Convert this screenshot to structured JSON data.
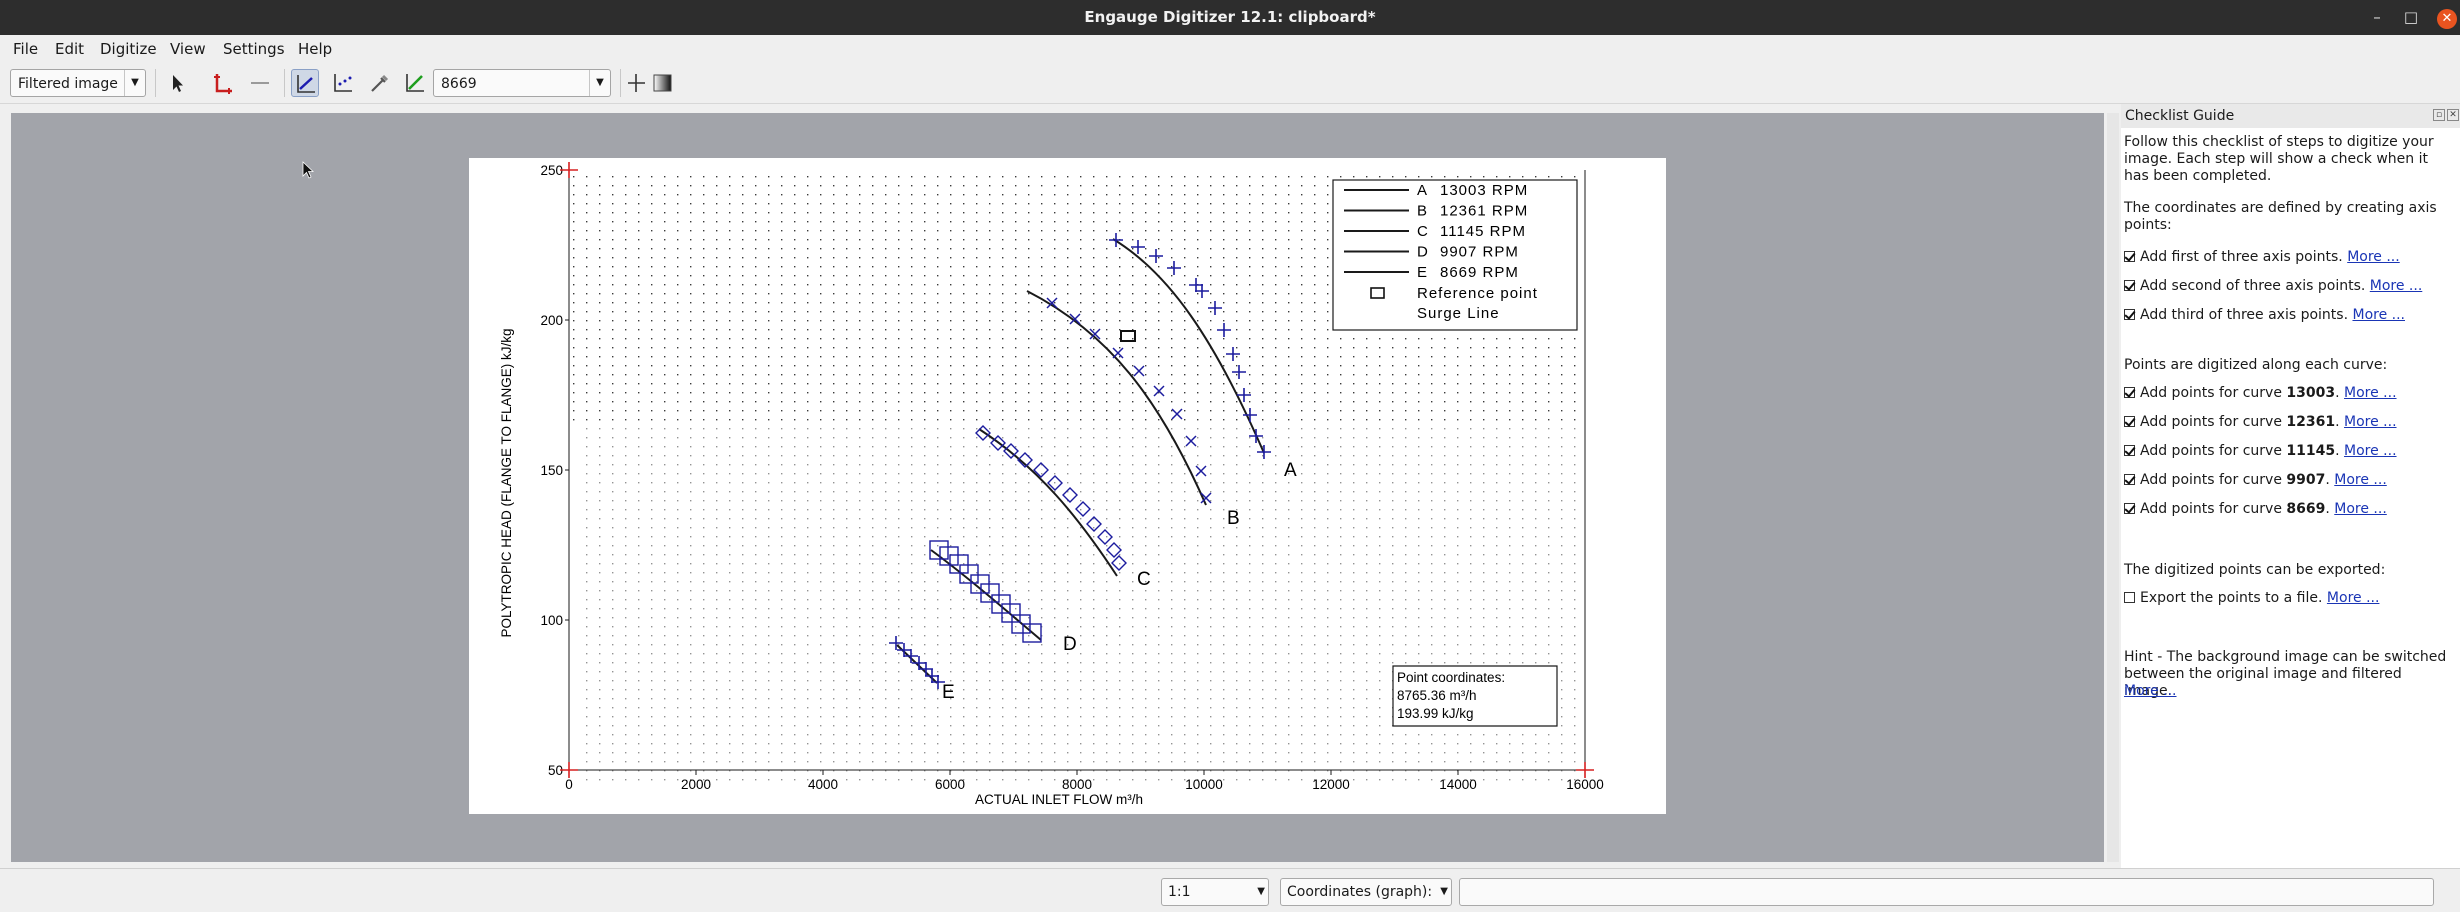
{
  "window": {
    "title": "Engauge Digitizer 12.1: clipboard*",
    "minimize_glyph": "–",
    "maximize_glyph": "□",
    "close_glyph": "✕"
  },
  "menu": [
    "File",
    "Edit",
    "Digitize",
    "View",
    "Settings",
    "Help"
  ],
  "toolbar": {
    "background_mode": "Filtered image",
    "curve_selected": "8669",
    "icons": [
      "select-arrow-icon",
      "axis-point-icon",
      "scale-bar-icon",
      "curve-point-icon",
      "point-match-icon",
      "color-picker-icon",
      "segment-fill-icon",
      "view-guidelines-icon",
      "background-contrast-icon"
    ]
  },
  "plot": {
    "y_ticks": [
      "250",
      "200",
      "150",
      "100",
      "50"
    ],
    "x_ticks": [
      "0",
      "2000",
      "4000",
      "6000",
      "8000",
      "10000",
      "12000",
      "14000",
      "16000"
    ],
    "y_label": "POLYTROPIC HEAD (FLANGE TO FLANGE)   kJ/kg",
    "x_label": "ACTUAL INLET FLOW     m³/h",
    "legend": [
      {
        "letter": "A",
        "text": "13003 RPM"
      },
      {
        "letter": "B",
        "text": "12361 RPM"
      },
      {
        "letter": "C",
        "text": "11145 RPM"
      },
      {
        "letter": "D",
        "text": "9907 RPM"
      },
      {
        "letter": "E",
        "text": "8669 RPM"
      }
    ],
    "legend_reference": "Reference point",
    "legend_surge": "Surge Line",
    "curve_letters": [
      "A",
      "B",
      "C",
      "D",
      "E"
    ],
    "coord_box": [
      "Point coordinates:",
      "8765.36 m³/h",
      "193.99 kJ/kg"
    ],
    "accent_colors": {
      "digitized": "#1c1c9e",
      "axis": "#d62020"
    }
  },
  "checklist": {
    "title": "Checklist Guide",
    "intro": "Follow this checklist of steps to digitize your image. Each step will show a check when it has been completed.",
    "axes_intro": "The coordinates are defined by creating axis points:",
    "axes_steps": [
      {
        "text": "Add first of three axis points.",
        "more": "More ...",
        "checked": true
      },
      {
        "text": "Add second of three axis points.",
        "more": "More ...",
        "checked": true
      },
      {
        "text": "Add third of three axis points.",
        "more": "More ...",
        "checked": true
      }
    ],
    "curves_intro": "Points are digitized along each curve:",
    "curve_steps": [
      {
        "prefix": "Add points for curve ",
        "curve": "13003",
        "more": "More ...",
        "checked": true
      },
      {
        "prefix": "Add points for curve ",
        "curve": "12361",
        "more": "More ...",
        "checked": true
      },
      {
        "prefix": "Add points for curve ",
        "curve": "11145",
        "more": "More ...",
        "checked": true
      },
      {
        "prefix": "Add points for curve ",
        "curve": "9907",
        "more": "More ...",
        "checked": true
      },
      {
        "prefix": "Add points for curve ",
        "curve": "8669",
        "more": "More ...",
        "checked": true
      }
    ],
    "export_intro": "The digitized points can be exported:",
    "export_step": {
      "text": "Export the points to a file.",
      "more": "More ...",
      "checked": false
    },
    "hint": "Hint - The background image can be switched between the original image and filtered image.",
    "hint_more": "More ..."
  },
  "status": {
    "zoom": "1:1",
    "coords_mode": "Coordinates (graph):",
    "coords_value": ""
  }
}
